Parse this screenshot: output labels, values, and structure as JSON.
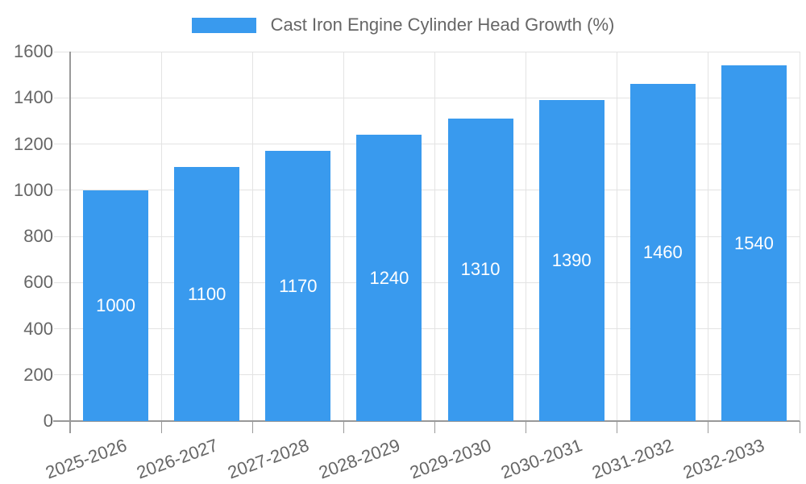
{
  "legend": {
    "label": "Cast Iron Engine Cylinder Head Growth (%)"
  },
  "chart_data": {
    "type": "bar",
    "title": "Cast Iron Engine Cylinder Head Growth (%)",
    "categories": [
      "2025-2026",
      "2026-2027",
      "2027-2028",
      "2028-2029",
      "2029-2030",
      "2030-2031",
      "2031-2032",
      "2032-2033"
    ],
    "values": [
      1000,
      1100,
      1170,
      1240,
      1310,
      1390,
      1460,
      1540
    ],
    "value_labels": [
      "1000",
      "1100",
      "1170",
      "1240",
      "1310",
      "1390",
      "1460",
      "1540"
    ],
    "xlabel": "",
    "ylabel": "",
    "ylim": [
      0,
      1600
    ],
    "y_ticks": [
      0,
      200,
      400,
      600,
      800,
      1000,
      1200,
      1400,
      1600
    ],
    "grid": true,
    "legend_position": "top",
    "x_label_rotation_deg": -20,
    "colors": {
      "bar": "#399AEE",
      "text": "#666666",
      "value_label": "#FFFFFF",
      "grid": "#E3E3E3",
      "axis": "#999999"
    }
  }
}
